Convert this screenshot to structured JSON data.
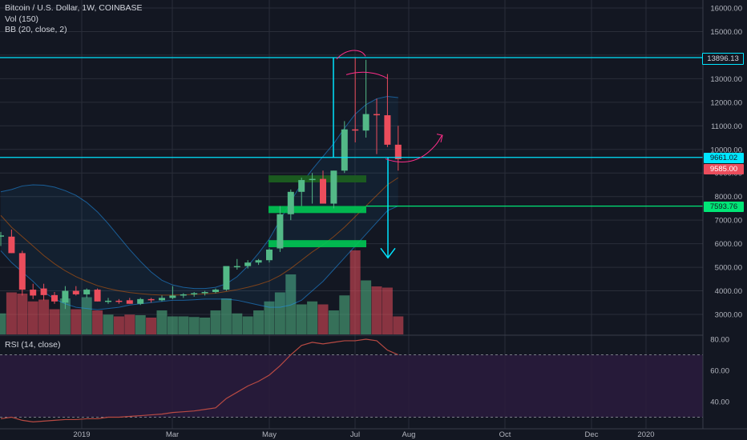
{
  "header": {
    "symbol_line": "Bitcoin / U.S. Dollar, 1W, COINBASE",
    "vol_label": "Vol (150)",
    "bb_label": "BB (20, close, 2)",
    "rsi_label": "RSI (14, close)"
  },
  "price_labels": {
    "resistance": "13896.13",
    "current": "9661.02",
    "close": "9585.00",
    "support": "7593.76"
  },
  "colors": {
    "background": "#131722",
    "up": "#53b987",
    "down": "#eb4d5c",
    "cyan": "#00e5ff",
    "green_line": "#00e676",
    "rsi_line": "#b84a43",
    "rsi_band": "#2a1b3d",
    "drawing_pink": "#ff2e8a"
  },
  "chart_data": {
    "type": "candlestick",
    "title": "Bitcoin / U.S. Dollar, 1W, COINBASE",
    "x_ticks": [
      "2019",
      "Mar",
      "May",
      "Jul",
      "Aug",
      "Oct",
      "Dec",
      "2020"
    ],
    "y_ticks": [
      "3000.00",
      "4000.00",
      "5000.00",
      "6000.00",
      "7000.00",
      "8000.00",
      "9000.00",
      "10000.00",
      "11000.00",
      "12000.00",
      "13000.00",
      "14000.00",
      "15000.00",
      "16000.00"
    ],
    "ylim": [
      2600,
      16400
    ],
    "rsi_ticks": [
      "40.00",
      "60.00",
      "80.00"
    ],
    "rsi_range": [
      25,
      82
    ],
    "rsi_band": [
      30,
      70
    ],
    "candles": [
      {
        "o": 6300,
        "h": 6500,
        "l": 5900,
        "c": 6350
      },
      {
        "o": 6300,
        "h": 6600,
        "l": 5600,
        "c": 5600
      },
      {
        "o": 5600,
        "h": 5700,
        "l": 3800,
        "c": 4050
      },
      {
        "o": 4050,
        "h": 4300,
        "l": 3650,
        "c": 3800
      },
      {
        "o": 4100,
        "h": 4300,
        "l": 3600,
        "c": 3820
      },
      {
        "o": 3820,
        "h": 3950,
        "l": 3450,
        "c": 3550
      },
      {
        "o": 3500,
        "h": 4200,
        "l": 3230,
        "c": 4000
      },
      {
        "o": 4000,
        "h": 4200,
        "l": 3800,
        "c": 3850
      },
      {
        "o": 3850,
        "h": 4100,
        "l": 3700,
        "c": 4050
      },
      {
        "o": 4050,
        "h": 4100,
        "l": 3550,
        "c": 3550
      },
      {
        "o": 3550,
        "h": 3700,
        "l": 3450,
        "c": 3580
      },
      {
        "o": 3580,
        "h": 3650,
        "l": 3450,
        "c": 3550
      },
      {
        "o": 3600,
        "h": 3700,
        "l": 3450,
        "c": 3450
      },
      {
        "o": 3450,
        "h": 3700,
        "l": 3400,
        "c": 3650
      },
      {
        "o": 3650,
        "h": 3700,
        "l": 3500,
        "c": 3600
      },
      {
        "o": 3600,
        "h": 3800,
        "l": 3550,
        "c": 3700
      },
      {
        "o": 3700,
        "h": 4200,
        "l": 3650,
        "c": 3800
      },
      {
        "o": 3800,
        "h": 3900,
        "l": 3700,
        "c": 3850
      },
      {
        "o": 3850,
        "h": 3950,
        "l": 3750,
        "c": 3900
      },
      {
        "o": 3900,
        "h": 4000,
        "l": 3800,
        "c": 3950
      },
      {
        "o": 3950,
        "h": 4100,
        "l": 3900,
        "c": 4050
      },
      {
        "o": 4050,
        "h": 5000,
        "l": 4000,
        "c": 5050
      },
      {
        "o": 5050,
        "h": 5350,
        "l": 4900,
        "c": 5050
      },
      {
        "o": 5050,
        "h": 5300,
        "l": 4950,
        "c": 5200
      },
      {
        "o": 5200,
        "h": 5350,
        "l": 5100,
        "c": 5300
      },
      {
        "o": 5300,
        "h": 5800,
        "l": 5200,
        "c": 5750
      },
      {
        "o": 5800,
        "h": 7600,
        "l": 5650,
        "c": 7250
      },
      {
        "o": 7250,
        "h": 8300,
        "l": 7000,
        "c": 8200
      },
      {
        "o": 8200,
        "h": 8800,
        "l": 7600,
        "c": 8700
      },
      {
        "o": 8700,
        "h": 9000,
        "l": 7700,
        "c": 8750
      },
      {
        "o": 8750,
        "h": 9100,
        "l": 7700,
        "c": 7700
      },
      {
        "o": 7700,
        "h": 9100,
        "l": 7500,
        "c": 9100
      },
      {
        "o": 9100,
        "h": 11200,
        "l": 9000,
        "c": 10850
      },
      {
        "o": 10850,
        "h": 13900,
        "l": 10300,
        "c": 10800
      },
      {
        "o": 10800,
        "h": 13800,
        "l": 10500,
        "c": 11500
      },
      {
        "o": 11500,
        "h": 12150,
        "l": 9800,
        "c": 11450
      },
      {
        "o": 11450,
        "h": 13200,
        "l": 10100,
        "c": 10200
      },
      {
        "o": 10200,
        "h": 11000,
        "l": 9100,
        "c": 9585
      }
    ],
    "volumes": [
      0.35,
      0.7,
      0.68,
      0.55,
      0.58,
      0.42,
      0.6,
      0.42,
      0.62,
      0.4,
      0.33,
      0.3,
      0.33,
      0.32,
      0.28,
      0.4,
      0.3,
      0.3,
      0.29,
      0.28,
      0.4,
      0.6,
      0.35,
      0.3,
      0.4,
      0.55,
      0.7,
      1.0,
      0.5,
      0.55,
      0.5,
      0.4,
      0.65,
      1.4,
      0.9,
      0.8,
      0.78,
      0.3
    ],
    "bb_basis": [
      7200,
      6700,
      6300,
      5900,
      5500,
      5150,
      4850,
      4600,
      4400,
      4220,
      4100,
      4000,
      3930,
      3880,
      3840,
      3820,
      3820,
      3830,
      3850,
      3870,
      3900,
      3970,
      4050,
      4150,
      4270,
      4420,
      4650,
      4950,
      5300,
      5650,
      5950,
      6300,
      6700,
      7150,
      7600,
      8050,
      8500,
      8800
    ],
    "bb_upper": [
      8200,
      8300,
      8450,
      8500,
      8480,
      8400,
      8250,
      8050,
      7750,
      7350,
      6850,
      6300,
      5750,
      5250,
      4800,
      4450,
      4250,
      4150,
      4100,
      4100,
      4150,
      4300,
      4600,
      5050,
      5600,
      6200,
      7000,
      7800,
      8550,
      9150,
      9700,
      10250,
      10900,
      11500,
      11900,
      12150,
      12250,
      12200
    ],
    "bb_lower": [
      5700,
      5200,
      4800,
      4400,
      3950,
      3650,
      3450,
      3300,
      3250,
      3200,
      3250,
      3300,
      3400,
      3450,
      3500,
      3550,
      3600,
      3600,
      3620,
      3650,
      3650,
      3650,
      3600,
      3500,
      3400,
      3300,
      3300,
      3400,
      3600,
      4000,
      4400,
      4900,
      5400,
      5900,
      6400,
      6900,
      7400,
      7600
    ],
    "rsi": [
      29,
      30,
      28,
      27,
      27.5,
      28,
      28.5,
      28.5,
      29,
      29,
      30,
      30,
      30.5,
      31,
      31.5,
      32,
      33,
      33.5,
      34,
      35,
      36,
      42,
      46,
      50,
      53,
      57,
      63,
      70,
      76,
      78,
      77,
      78,
      79,
      79,
      80,
      79,
      73,
      70
    ]
  }
}
